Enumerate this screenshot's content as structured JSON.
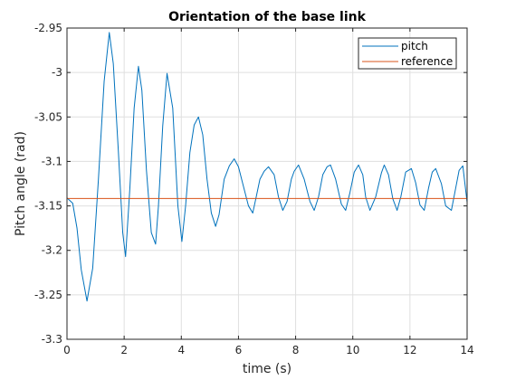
{
  "chart_data": {
    "type": "line",
    "title": "Orientation of the base link",
    "xlabel": "time (s)",
    "ylabel": "Pitch angle (rad)",
    "xlim": [
      0,
      14
    ],
    "ylim": [
      -3.3,
      -2.95
    ],
    "xticks": [
      0,
      2,
      4,
      6,
      8,
      10,
      12,
      14
    ],
    "xtick_labels": [
      "0",
      "2",
      "4",
      "6",
      "8",
      "10",
      "12",
      "14"
    ],
    "yticks": [
      -3.3,
      -3.25,
      -3.2,
      -3.15,
      -3.1,
      -3.05,
      -3,
      -2.95
    ],
    "ytick_labels": [
      "-3.3",
      "-3.25",
      "-3.2",
      "-3.15",
      "-3.1",
      "-3.05",
      "-3",
      "-2.95"
    ],
    "grid": true,
    "legend_position": "top-right",
    "series": [
      {
        "name": "pitch",
        "color": "#0072bd",
        "x": [
          0,
          0.2,
          0.35,
          0.5,
          0.7,
          0.9,
          1.1,
          1.3,
          1.48,
          1.62,
          1.8,
          1.95,
          2.05,
          2.2,
          2.35,
          2.5,
          2.62,
          2.78,
          2.95,
          3.1,
          3.2,
          3.35,
          3.5,
          3.7,
          3.88,
          4.02,
          4.15,
          4.3,
          4.45,
          4.6,
          4.75,
          4.9,
          5.05,
          5.2,
          5.32,
          5.5,
          5.68,
          5.85,
          6.0,
          6.15,
          6.35,
          6.5,
          6.62,
          6.75,
          6.9,
          7.05,
          7.25,
          7.4,
          7.55,
          7.7,
          7.85,
          7.95,
          8.1,
          8.3,
          8.5,
          8.65,
          8.8,
          8.95,
          9.1,
          9.22,
          9.4,
          9.6,
          9.75,
          9.9,
          10.05,
          10.2,
          10.35,
          10.45,
          10.6,
          10.8,
          11.0,
          11.1,
          11.25,
          11.4,
          11.55,
          11.68,
          11.85,
          12.05,
          12.2,
          12.35,
          12.5,
          12.65,
          12.78,
          12.9,
          13.1,
          13.25,
          13.45,
          13.6,
          13.72,
          13.85,
          14.0
        ],
        "y": [
          -3.141,
          -3.147,
          -3.175,
          -3.222,
          -3.257,
          -3.22,
          -3.12,
          -3.01,
          -2.955,
          -2.99,
          -3.09,
          -3.18,
          -3.207,
          -3.13,
          -3.04,
          -2.993,
          -3.02,
          -3.11,
          -3.18,
          -3.193,
          -3.15,
          -3.06,
          -3.001,
          -3.04,
          -3.15,
          -3.19,
          -3.15,
          -3.09,
          -3.059,
          -3.05,
          -3.07,
          -3.12,
          -3.158,
          -3.173,
          -3.16,
          -3.12,
          -3.105,
          -3.097,
          -3.106,
          -3.125,
          -3.15,
          -3.158,
          -3.14,
          -3.12,
          -3.111,
          -3.106,
          -3.115,
          -3.14,
          -3.155,
          -3.145,
          -3.12,
          -3.111,
          -3.104,
          -3.12,
          -3.145,
          -3.155,
          -3.14,
          -3.115,
          -3.106,
          -3.104,
          -3.12,
          -3.148,
          -3.155,
          -3.135,
          -3.112,
          -3.104,
          -3.115,
          -3.14,
          -3.155,
          -3.14,
          -3.113,
          -3.104,
          -3.115,
          -3.142,
          -3.155,
          -3.14,
          -3.112,
          -3.108,
          -3.124,
          -3.149,
          -3.155,
          -3.13,
          -3.112,
          -3.108,
          -3.125,
          -3.15,
          -3.155,
          -3.13,
          -3.11,
          -3.105,
          -3.146
        ]
      },
      {
        "name": "reference",
        "color": "#d95319",
        "x": [
          0,
          14
        ],
        "y": [
          -3.1416,
          -3.1416
        ]
      }
    ]
  }
}
